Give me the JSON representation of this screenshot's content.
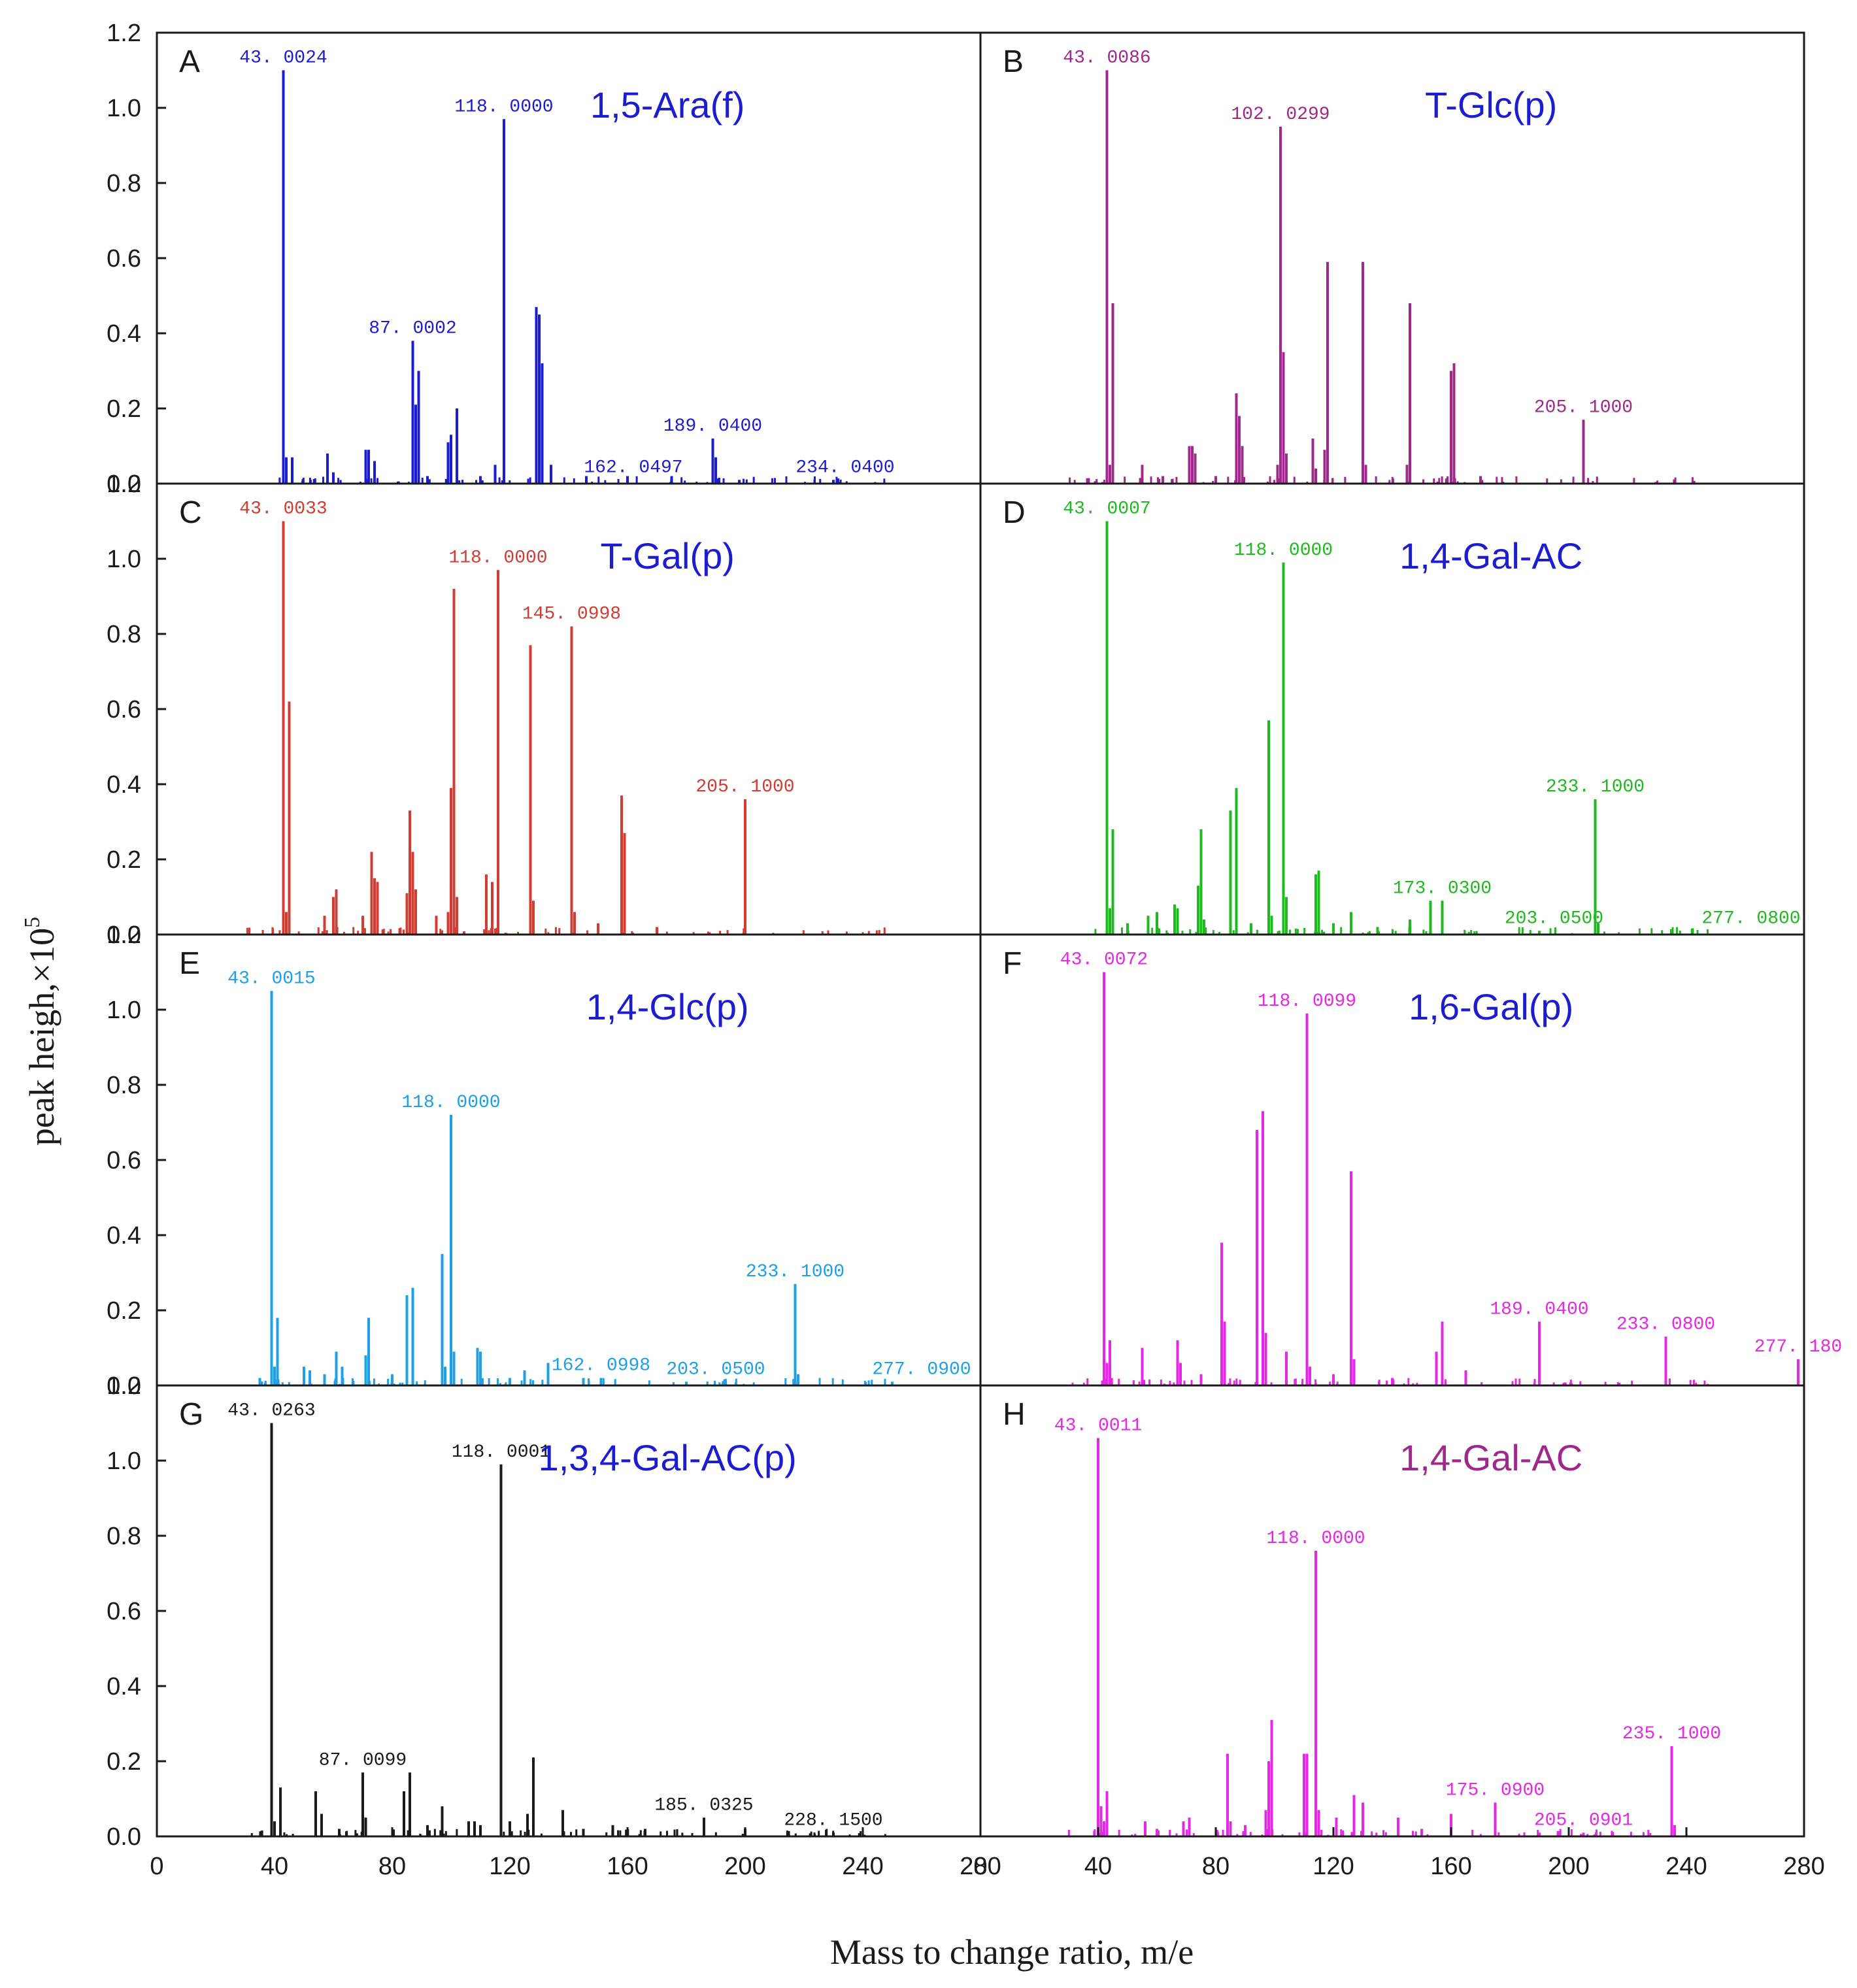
{
  "chart_data": {
    "type": "bar",
    "xlabel": "Mass to change ratio, m/e",
    "ylabel": "peak heigh,×10",
    "ylabel_superscript": "5",
    "xlim": [
      0,
      280
    ],
    "ylim": [
      0,
      1.2
    ],
    "x_ticks": [
      "0",
      "40",
      "80",
      "120",
      "160",
      "200",
      "240",
      "280"
    ],
    "y_ticks": [
      "0.0",
      "0.2",
      "0.4",
      "0.6",
      "0.8",
      "1.0",
      "1.2"
    ],
    "panels": [
      {
        "letter": "A",
        "compound": "1,5-Ara(f)",
        "color": "#1c1cd0",
        "compound_color": "#1c1cd0",
        "peaks": [
          [
            43,
            1.1
          ],
          [
            44,
            0.07
          ],
          [
            46,
            0.07
          ],
          [
            58,
            0.08
          ],
          [
            71,
            0.09
          ],
          [
            72,
            0.09
          ],
          [
            74,
            0.06
          ],
          [
            87,
            0.38
          ],
          [
            88,
            0.21
          ],
          [
            89,
            0.3
          ],
          [
            99,
            0.11
          ],
          [
            100,
            0.13
          ],
          [
            102,
            0.2
          ],
          [
            115,
            0.05
          ],
          [
            118,
            0.97
          ],
          [
            129,
            0.47
          ],
          [
            130,
            0.45
          ],
          [
            131,
            0.32
          ],
          [
            134,
            0.05
          ],
          [
            189,
            0.12
          ],
          [
            190,
            0.07
          ],
          [
            110,
            0.02
          ],
          [
            60,
            0.03
          ],
          [
            92,
            0.02
          ],
          [
            146,
            0.02
          ],
          [
            160,
            0.02
          ],
          [
            175,
            0.02
          ],
          [
            198,
            0.01
          ],
          [
            230,
            0.01
          ]
        ],
        "labels": [
          {
            "text": "43. 0024",
            "x": 43,
            "y": 1.1
          },
          {
            "text": "118. 0000",
            "x": 118,
            "y": 0.97
          },
          {
            "text": "87. 0002",
            "x": 87,
            "y": 0.38
          },
          {
            "text": "189. 0400",
            "x": 189,
            "y": 0.12
          },
          {
            "text": "162. 0497",
            "x": 162,
            "y": 0.01
          },
          {
            "text": "234. 0400",
            "x": 234,
            "y": 0.01
          }
        ]
      },
      {
        "letter": "B",
        "compound": "T-Glc(p)",
        "color": "#a0288c",
        "compound_color": "#1c1cd0",
        "peaks": [
          [
            43,
            1.1
          ],
          [
            44,
            0.05
          ],
          [
            45,
            0.48
          ],
          [
            55,
            0.05
          ],
          [
            71,
            0.1
          ],
          [
            72,
            0.1
          ],
          [
            73,
            0.08
          ],
          [
            87,
            0.24
          ],
          [
            88,
            0.18
          ],
          [
            89,
            0.1
          ],
          [
            101,
            0.05
          ],
          [
            102,
            0.95
          ],
          [
            103,
            0.35
          ],
          [
            104,
            0.08
          ],
          [
            113,
            0.12
          ],
          [
            114,
            0.04
          ],
          [
            118,
            0.59
          ],
          [
            117,
            0.09
          ],
          [
            130,
            0.59
          ],
          [
            131,
            0.05
          ],
          [
            146,
            0.48
          ],
          [
            145,
            0.05
          ],
          [
            160,
            0.3
          ],
          [
            161,
            0.32
          ],
          [
            205,
            0.17
          ],
          [
            170,
            0.02
          ],
          [
            62,
            0.02
          ],
          [
            80,
            0.02
          ]
        ],
        "labels": [
          {
            "text": "43. 0086",
            "x": 43,
            "y": 1.1
          },
          {
            "text": "102. 0299",
            "x": 102,
            "y": 0.95
          },
          {
            "text": "205. 1000",
            "x": 205,
            "y": 0.17
          }
        ]
      },
      {
        "letter": "C",
        "compound": "T-Gal(p)",
        "color": "#d23c32",
        "compound_color": "#1c1cd0",
        "peaks": [
          [
            43,
            1.1
          ],
          [
            44,
            0.06
          ],
          [
            45,
            0.62
          ],
          [
            57,
            0.05
          ],
          [
            60,
            0.1
          ],
          [
            61,
            0.12
          ],
          [
            73,
            0.22
          ],
          [
            74,
            0.15
          ],
          [
            75,
            0.14
          ],
          [
            85,
            0.11
          ],
          [
            86,
            0.33
          ],
          [
            87,
            0.22
          ],
          [
            88,
            0.12
          ],
          [
            99,
            0.06
          ],
          [
            100,
            0.39
          ],
          [
            101,
            0.92
          ],
          [
            102,
            0.1
          ],
          [
            112,
            0.16
          ],
          [
            114,
            0.14
          ],
          [
            116,
            0.97
          ],
          [
            127,
            0.77
          ],
          [
            128,
            0.09
          ],
          [
            141,
            0.82
          ],
          [
            142,
            0.06
          ],
          [
            158,
            0.37
          ],
          [
            159,
            0.27
          ],
          [
            200,
            0.36
          ],
          [
            70,
            0.05
          ],
          [
            95,
            0.05
          ],
          [
            150,
            0.03
          ],
          [
            170,
            0.02
          ]
        ],
        "labels": [
          {
            "text": "43. 0033",
            "x": 43,
            "y": 1.1
          },
          {
            "text": "118. 0000",
            "x": 116,
            "y": 0.97
          },
          {
            "text": "145. 0998",
            "x": 141,
            "y": 0.82
          },
          {
            "text": "205. 1000",
            "x": 200,
            "y": 0.36
          }
        ]
      },
      {
        "letter": "D",
        "compound": "1,4-Gal-AC",
        "color": "#1fba1f",
        "compound_color": "#1c1cd0",
        "peaks": [
          [
            43,
            1.1
          ],
          [
            44,
            0.07
          ],
          [
            45,
            0.28
          ],
          [
            57,
            0.05
          ],
          [
            60,
            0.06
          ],
          [
            66,
            0.08
          ],
          [
            67,
            0.07
          ],
          [
            74,
            0.13
          ],
          [
            75,
            0.28
          ],
          [
            76,
            0.04
          ],
          [
            85,
            0.33
          ],
          [
            87,
            0.39
          ],
          [
            98,
            0.57
          ],
          [
            99,
            0.05
          ],
          [
            103,
            0.99
          ],
          [
            104,
            0.1
          ],
          [
            114,
            0.16
          ],
          [
            115,
            0.17
          ],
          [
            126,
            0.06
          ],
          [
            146,
            0.04
          ],
          [
            153,
            0.09
          ],
          [
            157,
            0.09
          ],
          [
            209,
            0.36
          ],
          [
            210,
            0.03
          ],
          [
            190,
            0.01
          ],
          [
            235,
            0.01
          ],
          [
            50,
            0.03
          ],
          [
            92,
            0.03
          ],
          [
            120,
            0.03
          ],
          [
            135,
            0.02
          ]
        ],
        "labels": [
          {
            "text": "43. 0007",
            "x": 43,
            "y": 1.1
          },
          {
            "text": "118. 0000",
            "x": 103,
            "y": 0.99
          },
          {
            "text": "233. 1000",
            "x": 209,
            "y": 0.36
          },
          {
            "text": "173. 0300",
            "x": 157,
            "y": 0.09
          },
          {
            "text": "203. 0500",
            "x": 195,
            "y": 0.01
          },
          {
            "text": "277. 0800",
            "x": 262,
            "y": 0.01
          }
        ]
      },
      {
        "letter": "E",
        "compound": "1,4-Glc(p)",
        "color": "#1ea0e6",
        "compound_color": "#1c1cd0",
        "peaks": [
          [
            39,
            1.05
          ],
          [
            40,
            0.05
          ],
          [
            41,
            0.18
          ],
          [
            50,
            0.05
          ],
          [
            52,
            0.04
          ],
          [
            61,
            0.09
          ],
          [
            63,
            0.05
          ],
          [
            71,
            0.08
          ],
          [
            72,
            0.18
          ],
          [
            85,
            0.24
          ],
          [
            87,
            0.26
          ],
          [
            97,
            0.35
          ],
          [
            98,
            0.05
          ],
          [
            100,
            0.72
          ],
          [
            101,
            0.09
          ],
          [
            109,
            0.1
          ],
          [
            110,
            0.09
          ],
          [
            125,
            0.04
          ],
          [
            133,
            0.06
          ],
          [
            151,
            0.02
          ],
          [
            217,
            0.27
          ],
          [
            218,
            0.03
          ],
          [
            35,
            0.02
          ],
          [
            57,
            0.03
          ],
          [
            80,
            0.03
          ],
          [
            120,
            0.02
          ],
          [
            145,
            0.02
          ],
          [
            180,
            0.01
          ],
          [
            250,
            0.01
          ]
        ],
        "labels": [
          {
            "text": "43. 0015",
            "x": 39,
            "y": 1.05
          },
          {
            "text": "118. 0000",
            "x": 100,
            "y": 0.72
          },
          {
            "text": "233. 1000",
            "x": 217,
            "y": 0.27
          },
          {
            "text": "162. 0998",
            "x": 151,
            "y": 0.02
          },
          {
            "text": "203. 0500",
            "x": 190,
            "y": 0.01
          },
          {
            "text": "277. 0900",
            "x": 260,
            "y": 0.01
          }
        ]
      },
      {
        "letter": "F",
        "compound": "1,6-Gal(p)",
        "color": "#e628e6",
        "compound_color": "#1c1cd0",
        "peaks": [
          [
            42,
            1.1
          ],
          [
            43,
            0.06
          ],
          [
            44,
            0.12
          ],
          [
            55,
            0.1
          ],
          [
            67,
            0.12
          ],
          [
            68,
            0.06
          ],
          [
            82,
            0.38
          ],
          [
            83,
            0.17
          ],
          [
            94,
            0.68
          ],
          [
            96,
            0.73
          ],
          [
            97,
            0.14
          ],
          [
            104,
            0.09
          ],
          [
            111,
            0.99
          ],
          [
            112,
            0.05
          ],
          [
            126,
            0.57
          ],
          [
            127,
            0.07
          ],
          [
            155,
            0.09
          ],
          [
            157,
            0.17
          ],
          [
            165,
            0.04
          ],
          [
            190,
            0.17
          ],
          [
            233,
            0.13
          ],
          [
            278,
            0.07
          ],
          [
            75,
            0.03
          ],
          [
            140,
            0.02
          ],
          [
            120,
            0.03
          ]
        ],
        "labels": [
          {
            "text": "43. 0072",
            "x": 42,
            "y": 1.1
          },
          {
            "text": "118. 0099",
            "x": 111,
            "y": 0.99
          },
          {
            "text": "189. 0400",
            "x": 190,
            "y": 0.17
          },
          {
            "text": "233. 0800",
            "x": 233,
            "y": 0.13
          },
          {
            "text": "277. 180",
            "x": 278,
            "y": 0.07
          }
        ]
      },
      {
        "letter": "G",
        "compound": "1,3,4-Gal-AC(p)",
        "color": "#1a1a1a",
        "compound_color": "#1c1cd0",
        "peaks": [
          [
            39,
            1.1
          ],
          [
            40,
            0.04
          ],
          [
            42,
            0.13
          ],
          [
            54,
            0.12
          ],
          [
            56,
            0.06
          ],
          [
            70,
            0.17
          ],
          [
            71,
            0.05
          ],
          [
            84,
            0.12
          ],
          [
            86,
            0.17
          ],
          [
            97,
            0.08
          ],
          [
            106,
            0.04
          ],
          [
            108,
            0.04
          ],
          [
            117,
            0.99
          ],
          [
            120,
            0.04
          ],
          [
            126,
            0.06
          ],
          [
            128,
            0.21
          ],
          [
            138,
            0.07
          ],
          [
            145,
            0.02
          ],
          [
            155,
            0.03
          ],
          [
            166,
            0.02
          ],
          [
            186,
            0.05
          ],
          [
            200,
            0.02
          ],
          [
            230,
            0.01
          ],
          [
            62,
            0.02
          ],
          [
            92,
            0.03
          ],
          [
            110,
            0.03
          ]
        ],
        "labels": [
          {
            "text": "43. 0263",
            "x": 39,
            "y": 1.1
          },
          {
            "text": "118. 0001",
            "x": 117,
            "y": 0.99
          },
          {
            "text": "87. 0099",
            "x": 70,
            "y": 0.17
          },
          {
            "text": "185. 0325",
            "x": 186,
            "y": 0.05
          },
          {
            "text": "228. 1500",
            "x": 230,
            "y": 0.01
          }
        ]
      },
      {
        "letter": "H",
        "compound": "1,4-Gal-AC",
        "color": "#e628e6",
        "compound_color": "#a0288c",
        "peaks": [
          [
            40,
            1.06
          ],
          [
            41,
            0.08
          ],
          [
            42,
            0.04
          ],
          [
            43,
            0.12
          ],
          [
            56,
            0.04
          ],
          [
            69,
            0.04
          ],
          [
            71,
            0.05
          ],
          [
            84,
            0.22
          ],
          [
            85,
            0.04
          ],
          [
            97,
            0.07
          ],
          [
            98,
            0.2
          ],
          [
            99,
            0.31
          ],
          [
            110,
            0.22
          ],
          [
            111,
            0.22
          ],
          [
            114,
            0.76
          ],
          [
            115,
            0.07
          ],
          [
            121,
            0.05
          ],
          [
            127,
            0.11
          ],
          [
            130,
            0.09
          ],
          [
            142,
            0.05
          ],
          [
            160,
            0.06
          ],
          [
            175,
            0.09
          ],
          [
            205,
            0.01
          ],
          [
            235,
            0.24
          ],
          [
            236,
            0.03
          ],
          [
            60,
            0.02
          ],
          [
            90,
            0.03
          ],
          [
            150,
            0.02
          ],
          [
            190,
            0.01
          ]
        ],
        "labels": [
          {
            "text": "43. 0011",
            "x": 40,
            "y": 1.06
          },
          {
            "text": "118. 0000",
            "x": 114,
            "y": 0.76
          },
          {
            "text": "235. 1000",
            "x": 235,
            "y": 0.24
          },
          {
            "text": "175. 0900",
            "x": 175,
            "y": 0.09
          },
          {
            "text": "205. 0901",
            "x": 205,
            "y": 0.01
          }
        ]
      }
    ]
  }
}
